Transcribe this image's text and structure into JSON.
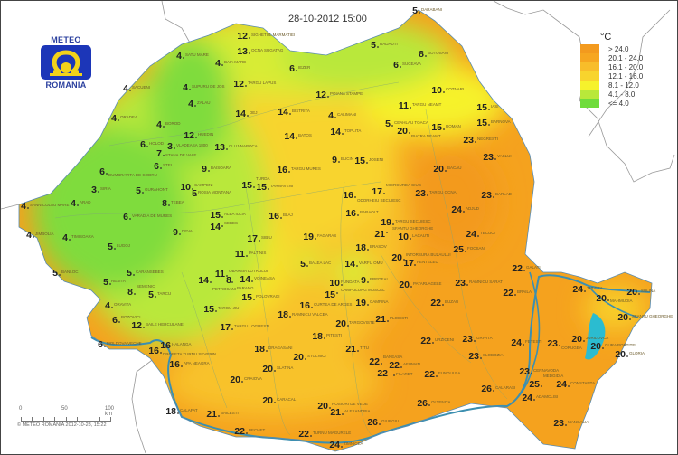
{
  "title": "28-10-2012 15:00",
  "logo": {
    "top": "METEO",
    "bottom": "ROMANIA"
  },
  "legend": {
    "unit": "°C",
    "items": [
      {
        "label": "> 24.0",
        "color": "#f39a1e"
      },
      {
        "label": "20.1 - 24.0",
        "color": "#f6a620"
      },
      {
        "label": "16.1 - 20.0",
        "color": "#f8bd2a"
      },
      {
        "label": "12.1 - 16.0",
        "color": "#f8d42d"
      },
      {
        "label": "8.1 - 12.0",
        "color": "#f6f22c"
      },
      {
        "label": "4.1 - 8.0",
        "color": "#b9e83a"
      },
      {
        "label": "<= 4.0",
        "color": "#6fdc3c"
      }
    ]
  },
  "scale": {
    "ticks": [
      "0",
      "50",
      "100 km"
    ]
  },
  "copyright": "© METEO ROMANIA 2012-10-28, 15:22",
  "stations": [
    {
      "name": "DARABANI",
      "temp": "5"
    },
    {
      "name": "RADAUTI",
      "temp": "5"
    },
    {
      "name": "BOTOSANI",
      "temp": "8"
    },
    {
      "name": "SUCEAVA",
      "temp": "6"
    },
    {
      "name": "SIGHETUL MARMATIEI",
      "temp": "12"
    },
    {
      "name": "OCNA SUGATAG",
      "temp": "13"
    },
    {
      "name": "SATU MARE",
      "temp": "4"
    },
    {
      "name": "BAIA MARE",
      "temp": "4"
    },
    {
      "name": "SUPURU DE JOS",
      "temp": "4"
    },
    {
      "name": "SACUENI",
      "temp": "4"
    },
    {
      "name": "IEZER",
      "temp": "6"
    },
    {
      "name": "TARGU LAPUS",
      "temp": "12"
    },
    {
      "name": "POIANA STAMPEI",
      "temp": "12"
    },
    {
      "name": "COTNARI",
      "temp": "10"
    },
    {
      "name": "TARGU NEAMT",
      "temp": "11"
    },
    {
      "name": "IASI",
      "temp": "15"
    },
    {
      "name": "BARNOVA",
      "temp": "15"
    },
    {
      "name": "PIATRA NEAMT",
      "temp": "20"
    },
    {
      "name": "ROMAN",
      "temp": "15"
    },
    {
      "name": "NEGRESTI",
      "temp": "23"
    },
    {
      "name": "VASLUI",
      "temp": "23"
    },
    {
      "name": "BACAU",
      "temp": "20"
    },
    {
      "name": "TARGU OCNA",
      "temp": "23"
    },
    {
      "name": "BARLAD",
      "temp": "23"
    },
    {
      "name": "ADJUD",
      "temp": "24"
    },
    {
      "name": "ZALAU",
      "temp": "4"
    },
    {
      "name": "ORADEA",
      "temp": "4"
    },
    {
      "name": "BOROD",
      "temp": "4"
    },
    {
      "name": "HUEDIN",
      "temp": "12"
    },
    {
      "name": "DEJ",
      "temp": "14"
    },
    {
      "name": "BISTRITA",
      "temp": "14"
    },
    {
      "name": "CALIMANI",
      "temp": "4"
    },
    {
      "name": "BATOS",
      "temp": "14"
    },
    {
      "name": "TOPLITA",
      "temp": "14"
    },
    {
      "name": "CEAHLAU TOACA",
      "temp": "5"
    },
    {
      "name": "CLUJ-NAPOCA",
      "temp": "13"
    },
    {
      "name": "VLADEASA 1800",
      "temp": "3"
    },
    {
      "name": "HOLOD",
      "temp": "6"
    },
    {
      "name": "STANA DE VALE",
      "temp": "7"
    },
    {
      "name": "STEI",
      "temp": "6"
    },
    {
      "name": "DUMBRAVITA DE CODRU",
      "temp": "6"
    },
    {
      "name": "GURAHONT",
      "temp": "5"
    },
    {
      "name": "SIRIA",
      "temp": "3"
    },
    {
      "name": "SANNICOLAU MARE",
      "temp": "4"
    },
    {
      "name": "ARAD",
      "temp": "4"
    },
    {
      "name": "JIMBOLIA",
      "temp": "4"
    },
    {
      "name": "TIMISOARA",
      "temp": "4"
    },
    {
      "name": "LUGOJ",
      "temp": "5"
    },
    {
      "name": "VARADIA DE MURES",
      "temp": "6"
    },
    {
      "name": "DEVA",
      "temp": "9"
    },
    {
      "name": "BAISOARA",
      "temp": "9"
    },
    {
      "name": "TURDA",
      "temp": "15"
    },
    {
      "name": "CAMPENI",
      "temp": "10"
    },
    {
      "name": "ROSIA MONTANA",
      "temp": "5"
    },
    {
      "name": "TARGU MURES",
      "temp": "16"
    },
    {
      "name": "TARNAVENI",
      "temp": "15"
    },
    {
      "name": "JOSENI",
      "temp": "15"
    },
    {
      "name": "BUCIN",
      "temp": "9"
    },
    {
      "name": "ODORHEIU SECUIESC",
      "temp": "16"
    },
    {
      "name": "MIERCUREA CIUC",
      "temp": "17"
    },
    {
      "name": "BARAOLT",
      "temp": "16"
    },
    {
      "name": "TARGU SECUIESC",
      "temp": "19"
    },
    {
      "name": "SFANTU GHEORGHE",
      "temp": "21"
    },
    {
      "name": "BRASOV",
      "temp": "18"
    },
    {
      "name": "INTORSURA BUZAULUI",
      "temp": "20"
    },
    {
      "name": "LACAUTI",
      "temp": "10"
    },
    {
      "name": "PENTELEU",
      "temp": "17"
    },
    {
      "name": "FUNDATA",
      "temp": "10"
    },
    {
      "name": "PREDEAL",
      "temp": "9"
    },
    {
      "name": "VARFU OMU",
      "temp": "14"
    },
    {
      "name": "CAMPULUNG MUSCEL",
      "temp": "15"
    },
    {
      "name": "ALBA IULIA",
      "temp": "15"
    },
    {
      "name": "SEBES",
      "temp": "14"
    },
    {
      "name": "BLAJ",
      "temp": "16"
    },
    {
      "name": "SIBIU",
      "temp": "17"
    },
    {
      "name": "PALTINIS",
      "temp": "11"
    },
    {
      "name": "BALEA LAC",
      "temp": "5"
    },
    {
      "name": "FAGARAS",
      "temp": "19"
    },
    {
      "name": "OBARSIA LOTRULUI",
      "temp": "11"
    },
    {
      "name": "VOINEASA",
      "temp": "14"
    },
    {
      "name": "PETROSANI",
      "temp": "14"
    },
    {
      "name": "PARANG",
      "temp": "8"
    },
    {
      "name": "POLOVRAGI",
      "temp": "15"
    },
    {
      "name": "TARGU JIU",
      "temp": "15"
    },
    {
      "name": "RAMNICU VALCEA",
      "temp": "18"
    },
    {
      "name": "CURTEA DE ARGES",
      "temp": "16"
    },
    {
      "name": "DRAGASANI",
      "temp": "18"
    },
    {
      "name": "TARGU LOGRESTI",
      "temp": "17"
    },
    {
      "name": "PITESTI",
      "temp": "18"
    },
    {
      "name": "TARGOVISTE",
      "temp": "20"
    },
    {
      "name": "CAMPINA",
      "temp": "19"
    },
    {
      "name": "PLOIESTI",
      "temp": "21"
    },
    {
      "name": "TITU",
      "temp": "21"
    },
    {
      "name": "BUZAU",
      "temp": "22"
    },
    {
      "name": "RAMNICU SARAT",
      "temp": "23"
    },
    {
      "name": "PATARLAGELE",
      "temp": "20"
    },
    {
      "name": "FOCSANI",
      "temp": "25"
    },
    {
      "name": "TECUCI",
      "temp": "24"
    },
    {
      "name": "GALATI",
      "temp": "22"
    },
    {
      "name": "BRAILA",
      "temp": "22"
    },
    {
      "name": "URZICENI",
      "temp": "22"
    },
    {
      "name": "GRIVITA",
      "temp": "23"
    },
    {
      "name": "SLOBOZIA",
      "temp": "23"
    },
    {
      "name": "AFUMATI",
      "temp": "22"
    },
    {
      "name": "BANEASA",
      "temp": "22"
    },
    {
      "name": "FILARET",
      "temp": "22"
    },
    {
      "name": "FUNDULEA",
      "temp": "22"
    },
    {
      "name": "SLATINA",
      "temp": "20"
    },
    {
      "name": "STOLNICI",
      "temp": "20"
    },
    {
      "name": "CRAIOVA",
      "temp": "20"
    },
    {
      "name": "BAILESTI",
      "temp": "21"
    },
    {
      "name": "CALAFAT",
      "temp": "18"
    },
    {
      "name": "BECHET",
      "temp": "22"
    },
    {
      "name": "CARACAL",
      "temp": "20"
    },
    {
      "name": "ROSIORI DE VEDE",
      "temp": "20"
    },
    {
      "name": "TURNU MAGURELE",
      "temp": "22"
    },
    {
      "name": "ALEXANDRIA",
      "temp": "21"
    },
    {
      "name": "ZIMNICEA",
      "temp": "24"
    },
    {
      "name": "GIURGIU",
      "temp": "26"
    },
    {
      "name": "OLTENITA",
      "temp": "26"
    },
    {
      "name": "CALARASI",
      "temp": "26"
    },
    {
      "name": "FETESTI",
      "temp": "24"
    },
    {
      "name": "CERNAVODA",
      "temp": "23"
    },
    {
      "name": "MEDGIDIA",
      "temp": "25"
    },
    {
      "name": "ADAMCLISI",
      "temp": "24"
    },
    {
      "name": "CONSTANTA",
      "temp": "24"
    },
    {
      "name": "MANGALIA",
      "temp": "23"
    },
    {
      "name": "CORUGEA",
      "temp": "23"
    },
    {
      "name": "TULCEA",
      "temp": "24"
    },
    {
      "name": "JURILOVCA",
      "temp": "20"
    },
    {
      "name": "GURA PORTITEI",
      "temp": "20"
    },
    {
      "name": "MAHMUDIA",
      "temp": "20"
    },
    {
      "name": "SULINA",
      "temp": "20"
    },
    {
      "name": "SFANTU GHEORGHE",
      "temp": "20"
    },
    {
      "name": "GLORIA",
      "temp": "20"
    },
    {
      "name": "DROBETA TURNU SEVERIN",
      "temp": "16"
    },
    {
      "name": "HALANGA",
      "temp": "16"
    },
    {
      "name": "BANLOC",
      "temp": "5"
    },
    {
      "name": "RESITA",
      "temp": "5"
    },
    {
      "name": "CARANSEBES",
      "temp": "5"
    },
    {
      "name": "SEMENIC",
      "temp": "8"
    },
    {
      "name": "ORAVITA",
      "temp": "4"
    },
    {
      "name": "TARCU",
      "temp": "5"
    },
    {
      "name": "BOZOVICI",
      "temp": "6"
    },
    {
      "name": "BAILE HERCULANE",
      "temp": "12"
    },
    {
      "name": "MOLDOVA VECHE",
      "temp": "6"
    },
    {
      "name": "TEBEA",
      "temp": "8"
    },
    {
      "name": "APA NEAGRA",
      "temp": "16"
    }
  ]
}
